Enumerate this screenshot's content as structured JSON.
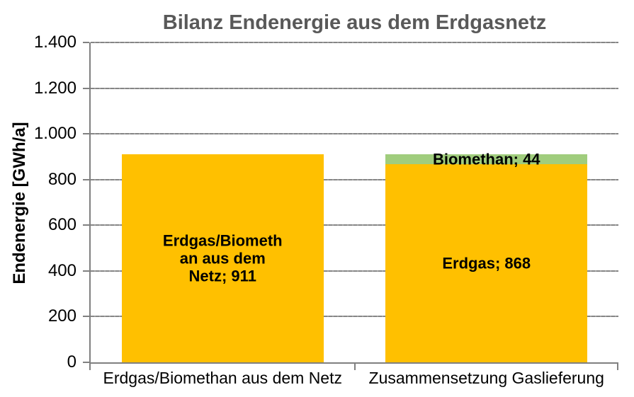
{
  "page": {
    "background": "#FFFFFF"
  },
  "colors": {
    "title_text": "#595959",
    "axis_line": "#808080",
    "gridline": "#8F8F8F",
    "tick_text": "#000000",
    "data_label_text": "#000000",
    "bar_yellow": "#FFC000",
    "bar_green": "#A0CD7D"
  },
  "chart_data": {
    "type": "bar",
    "stacked": true,
    "title": "Bilanz Endenergie aus dem Erdgasnetz",
    "ylabel": "Endenergie [GWh/a]",
    "xlabel": "",
    "ylim": [
      0,
      1400
    ],
    "ytick_step": 200,
    "ytick_labels": [
      "0",
      "200",
      "400",
      "600",
      "800",
      "1.000",
      "1.200",
      "1.400"
    ],
    "grid": true,
    "legend": false,
    "categories": [
      "Erdgas/Biomethan aus dem Netz",
      "Zusammensetzung Gaslieferung"
    ],
    "bars": [
      {
        "category": "Erdgas/Biomethan aus dem Netz",
        "total": 911,
        "segments": [
          {
            "name": "Erdgas/Biomethan aus dem Netz",
            "value": 911,
            "color": "#FFC000",
            "data_label": "Erdgas/Biometh\nan aus dem\nNetz; 911"
          }
        ]
      },
      {
        "category": "Zusammensetzung Gaslieferung",
        "total": 912,
        "segments": [
          {
            "name": "Erdgas",
            "value": 868,
            "color": "#FFC000",
            "data_label": "Erdgas; 868"
          },
          {
            "name": "Biomethan",
            "value": 44,
            "color": "#A0CD7D",
            "data_label": "Biomethan; 44"
          }
        ]
      }
    ]
  }
}
